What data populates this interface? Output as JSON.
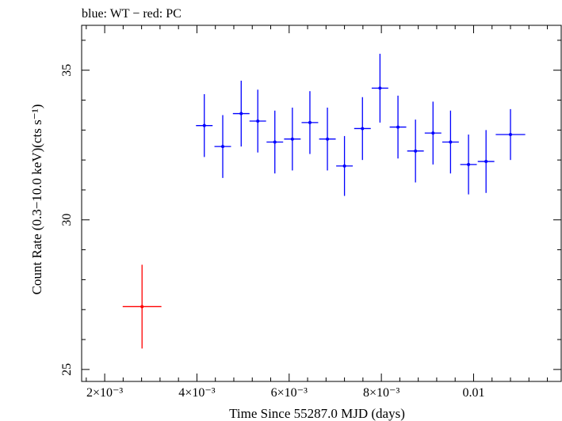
{
  "chart_data": {
    "type": "scatter",
    "title": "blue: WT − red: PC",
    "xlabel": "Time Since 55287.0 MJD (days)",
    "ylabel": "Count Rate (0.3−10.0 keV)(cts s⁻¹)",
    "xlim": [
      0.0015,
      0.0119
    ],
    "ylim": [
      24.6,
      36.5
    ],
    "x_ticks": [
      {
        "value": 0.002,
        "label": "2×10⁻³"
      },
      {
        "value": 0.004,
        "label": "4×10⁻³"
      },
      {
        "value": 0.006,
        "label": "6×10⁻³"
      },
      {
        "value": 0.008,
        "label": "8×10⁻³"
      },
      {
        "value": 0.01,
        "label": "0.01"
      }
    ],
    "y_ticks": [
      {
        "value": 25,
        "label": "25"
      },
      {
        "value": 30,
        "label": "30"
      },
      {
        "value": 35,
        "label": "35"
      }
    ],
    "grid": false,
    "series": [
      {
        "name": "WT",
        "color": "#0000ff",
        "points": [
          {
            "x": 0.00416,
            "xerr": 0.00018,
            "y": 33.15,
            "yerr": 1.05
          },
          {
            "x": 0.00456,
            "xerr": 0.00018,
            "y": 32.45,
            "yerr": 1.05
          },
          {
            "x": 0.00496,
            "xerr": 0.00018,
            "y": 33.55,
            "yerr": 1.1
          },
          {
            "x": 0.00532,
            "xerr": 0.00018,
            "y": 33.3,
            "yerr": 1.05
          },
          {
            "x": 0.00569,
            "xerr": 0.00018,
            "y": 32.6,
            "yerr": 1.05
          },
          {
            "x": 0.00607,
            "xerr": 0.00018,
            "y": 32.7,
            "yerr": 1.05
          },
          {
            "x": 0.00645,
            "xerr": 0.00018,
            "y": 33.25,
            "yerr": 1.05
          },
          {
            "x": 0.00683,
            "xerr": 0.00018,
            "y": 32.7,
            "yerr": 1.05
          },
          {
            "x": 0.0072,
            "xerr": 0.00018,
            "y": 31.8,
            "yerr": 1.0
          },
          {
            "x": 0.00759,
            "xerr": 0.00018,
            "y": 33.05,
            "yerr": 1.05
          },
          {
            "x": 0.00797,
            "xerr": 0.00018,
            "y": 34.4,
            "yerr": 1.15
          },
          {
            "x": 0.00836,
            "xerr": 0.00018,
            "y": 33.1,
            "yerr": 1.05
          },
          {
            "x": 0.00874,
            "xerr": 0.00018,
            "y": 32.3,
            "yerr": 1.05
          },
          {
            "x": 0.00912,
            "xerr": 0.00018,
            "y": 32.9,
            "yerr": 1.05
          },
          {
            "x": 0.0095,
            "xerr": 0.00018,
            "y": 32.6,
            "yerr": 1.05
          },
          {
            "x": 0.00989,
            "xerr": 0.00018,
            "y": 31.85,
            "yerr": 1.0
          },
          {
            "x": 0.01027,
            "xerr": 0.00018,
            "y": 31.95,
            "yerr": 1.05
          },
          {
            "x": 0.0108,
            "xerr": 0.00032,
            "y": 32.85,
            "yerr": 0.85
          }
        ]
      },
      {
        "name": "PC",
        "color": "#ff0000",
        "points": [
          {
            "x": 0.00281,
            "xerr": 0.00042,
            "y": 27.1,
            "yerr": 1.4
          }
        ]
      }
    ]
  }
}
